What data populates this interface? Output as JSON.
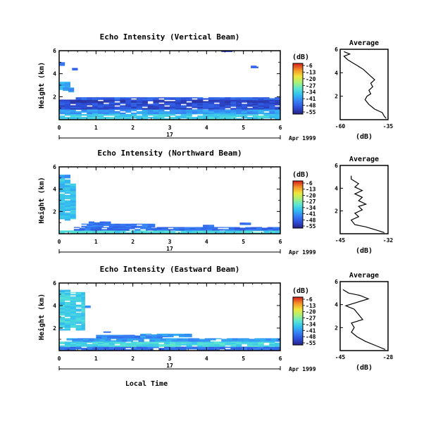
{
  "xlabel": "Local Time",
  "date_label": "Apr 1999",
  "day_label": "17",
  "colorbar": {
    "unit": "(dB)",
    "ticks": [
      "-6",
      "-13",
      "-20",
      "-27",
      "-34",
      "-41",
      "-48",
      "-55"
    ]
  },
  "chart_data": [
    {
      "type": "heatmap",
      "title": "Echo Intensity (Vertical Beam)",
      "ylabel": "Height (km)",
      "x_ticks": [
        "0",
        "1",
        "2",
        "3",
        "4",
        "5",
        "6"
      ],
      "y_ticks": [
        "6",
        "4",
        "2"
      ],
      "xlim": [
        0,
        6
      ],
      "ylim": [
        0,
        6
      ],
      "z_range_dB": [
        -55,
        -6
      ],
      "average": {
        "title": "Average",
        "xlabel": "(dB)",
        "x_ticks": [
          "-60",
          "-35"
        ],
        "xlim": [
          -60,
          -35
        ],
        "y_ticks": [
          "6",
          "4",
          "2"
        ],
        "ylim": [
          0,
          6
        ],
        "profile": [
          [
            -36,
            0.1
          ],
          [
            -37,
            0.3
          ],
          [
            -38,
            0.6
          ],
          [
            -42,
            0.9
          ],
          [
            -45,
            1.3
          ],
          [
            -47,
            1.7
          ],
          [
            -46,
            2.0
          ],
          [
            -44,
            2.2
          ],
          [
            -45,
            2.5
          ],
          [
            -43,
            2.8
          ],
          [
            -44,
            3.1
          ],
          [
            -42,
            3.4
          ],
          [
            -44,
            3.7
          ],
          [
            -46,
            4.0
          ],
          [
            -48,
            4.3
          ],
          [
            -51,
            4.6
          ],
          [
            -53,
            4.8
          ],
          [
            -56,
            5.1
          ],
          [
            -58,
            5.4
          ],
          [
            -55,
            5.6
          ],
          [
            -58,
            5.8
          ]
        ]
      }
    },
    {
      "type": "heatmap",
      "title": "Echo Intensity (Northward Beam)",
      "ylabel": "Height (km)",
      "x_ticks": [
        "0",
        "1",
        "2",
        "3",
        "4",
        "5",
        "6"
      ],
      "y_ticks": [
        "6",
        "4",
        "2"
      ],
      "xlim": [
        0,
        6
      ],
      "ylim": [
        0,
        6
      ],
      "z_range_dB": [
        -55,
        -6
      ],
      "average": {
        "title": "Average",
        "xlabel": "(dB)",
        "x_ticks": [
          "-45",
          "-32"
        ],
        "xlim": [
          -45,
          -32
        ],
        "y_ticks": [
          "6",
          "4",
          "2"
        ],
        "ylim": [
          0,
          6
        ],
        "profile": [
          [
            -33,
            0.1
          ],
          [
            -35,
            0.3
          ],
          [
            -38,
            0.6
          ],
          [
            -41,
            0.8
          ],
          [
            -42,
            1.2
          ],
          [
            -40,
            1.5
          ],
          [
            -41,
            1.8
          ],
          [
            -39,
            2.1
          ],
          [
            -40,
            2.4
          ],
          [
            -38,
            2.6
          ],
          [
            -40,
            2.9
          ],
          [
            -39,
            3.2
          ],
          [
            -41,
            3.5
          ],
          [
            -39,
            3.8
          ],
          [
            -41,
            4.1
          ],
          [
            -40,
            4.4
          ],
          [
            -42,
            4.8
          ],
          [
            -42,
            5.1
          ]
        ]
      }
    },
    {
      "type": "heatmap",
      "title": "Echo Intensity (Eastward Beam)",
      "ylabel": "Height (km)",
      "x_ticks": [
        "0",
        "1",
        "2",
        "3",
        "4",
        "5",
        "6"
      ],
      "y_ticks": [
        "6",
        "4",
        "2"
      ],
      "xlim": [
        0,
        6
      ],
      "ylim": [
        0,
        6
      ],
      "z_range_dB": [
        -55,
        -6
      ],
      "average": {
        "title": "Average",
        "xlabel": "(dB)",
        "x_ticks": [
          "-45",
          "-28"
        ],
        "xlim": [
          -45,
          -28
        ],
        "y_ticks": [
          "6",
          "4",
          "2"
        ],
        "ylim": [
          0,
          6
        ],
        "profile": [
          [
            -29,
            0.1
          ],
          [
            -32,
            0.4
          ],
          [
            -36,
            0.8
          ],
          [
            -39,
            1.2
          ],
          [
            -41,
            1.6
          ],
          [
            -40,
            2.0
          ],
          [
            -41,
            2.4
          ],
          [
            -37,
            2.7
          ],
          [
            -38,
            3.0
          ],
          [
            -39,
            3.3
          ],
          [
            -40,
            3.6
          ],
          [
            -43,
            3.9
          ],
          [
            -39,
            4.2
          ],
          [
            -35,
            4.5
          ],
          [
            -38,
            4.8
          ],
          [
            -42,
            5.0
          ],
          [
            -44,
            5.3
          ]
        ]
      }
    }
  ]
}
